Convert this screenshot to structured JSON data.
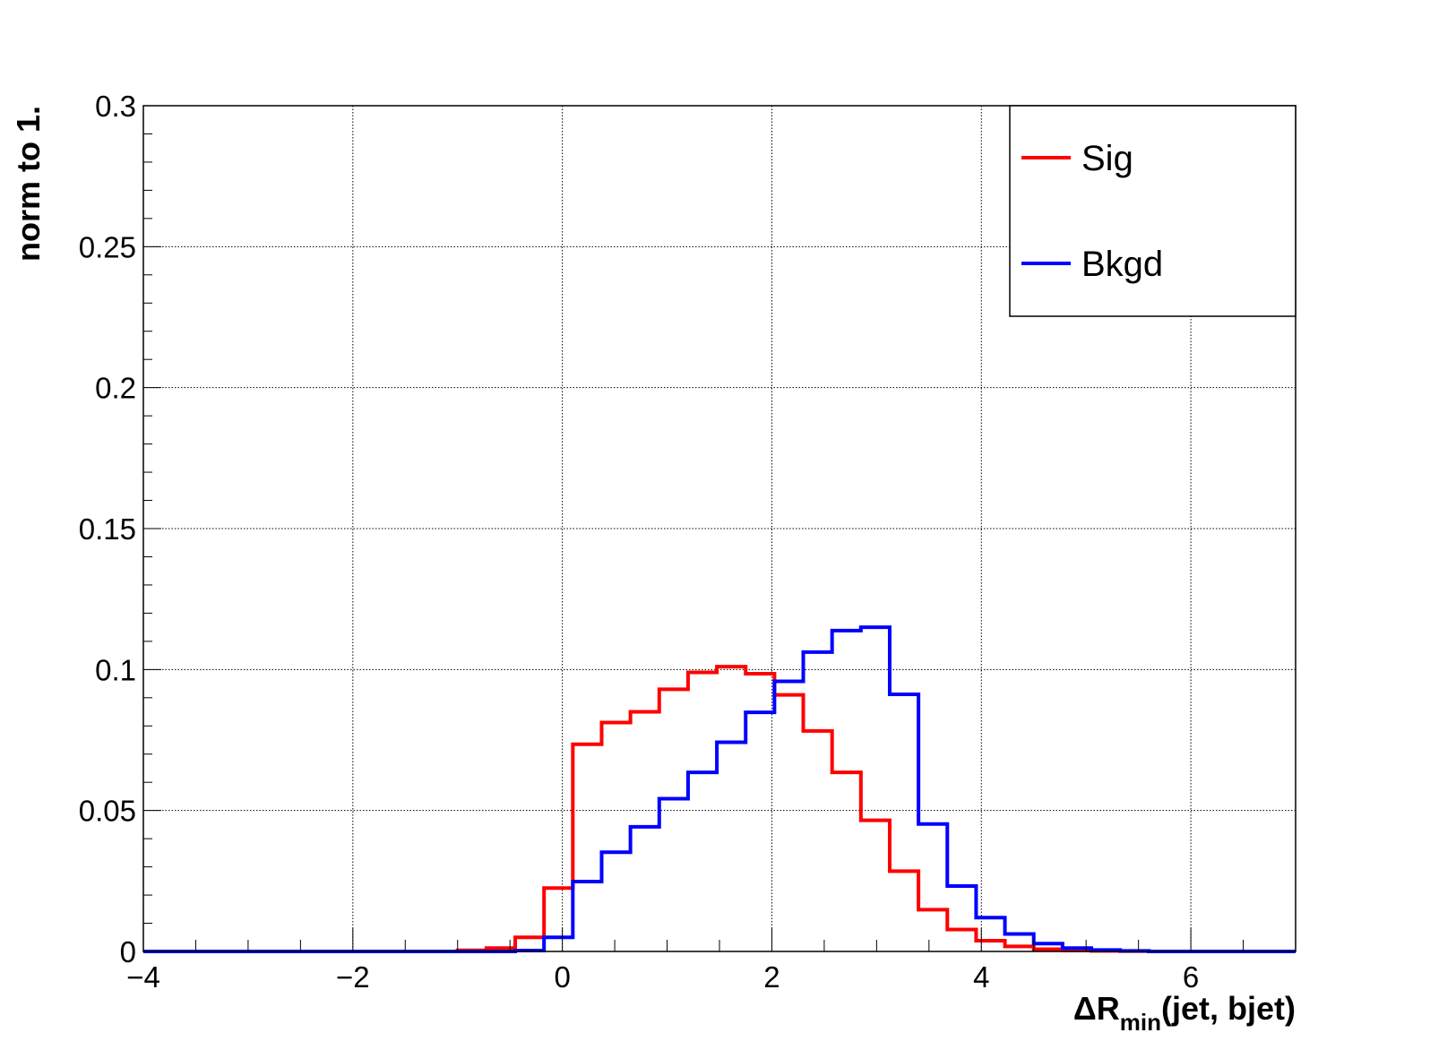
{
  "chart_data": {
    "type": "histogram",
    "xlim": [
      -4,
      7
    ],
    "ylim": [
      0,
      0.3
    ],
    "bin_width": 0.275,
    "grid": true,
    "legend_position": "top-right",
    "xlabel": {
      "main": "ΔR",
      "sub": "min",
      "rest": "(jet, bjet)"
    },
    "ylabel": "norm to 1.",
    "xticks": [
      -4,
      -2,
      0,
      2,
      4,
      6
    ],
    "xtick_labels": [
      "−4",
      "−2",
      "0",
      "2",
      "4",
      "6"
    ],
    "yticks": [
      0,
      0.05,
      0.1,
      0.15,
      0.2,
      0.25,
      0.3
    ],
    "ytick_labels": [
      "0",
      "0.05",
      "0.1",
      "0.15",
      "0.2",
      "0.25",
      "0.3"
    ],
    "series": [
      {
        "name": "Sig",
        "color": "#ff0000",
        "bin_edges": [
          -4.0,
          -1.0,
          -0.725,
          -0.45,
          -0.175,
          0.1,
          0.375,
          0.65,
          0.925,
          1.2,
          1.475,
          1.75,
          2.025,
          2.3,
          2.575,
          2.85,
          3.125,
          3.4,
          3.675,
          3.95,
          4.225,
          4.5,
          4.775,
          5.05,
          5.325,
          5.6,
          7.0
        ],
        "values": [
          0.0,
          0.0004,
          0.0012,
          0.005,
          0.0225,
          0.0735,
          0.0812,
          0.085,
          0.093,
          0.099,
          0.101,
          0.0985,
          0.091,
          0.0782,
          0.0635,
          0.0465,
          0.0285,
          0.0148,
          0.0078,
          0.0038,
          0.0018,
          0.0008,
          0.0004,
          0.0002,
          0.0001,
          0.0
        ]
      },
      {
        "name": "Bkgd",
        "color": "#0000ff",
        "bin_edges": [
          -4.0,
          -0.45,
          -0.175,
          0.1,
          0.375,
          0.65,
          0.925,
          1.2,
          1.475,
          1.75,
          2.025,
          2.3,
          2.575,
          2.85,
          3.125,
          3.4,
          3.675,
          3.95,
          4.225,
          4.5,
          4.775,
          5.05,
          5.325,
          5.6,
          7.0
        ],
        "values": [
          0.0,
          0.0003,
          0.005,
          0.0248,
          0.0352,
          0.0442,
          0.0542,
          0.0635,
          0.0742,
          0.0848,
          0.0958,
          0.1062,
          0.1138,
          0.115,
          0.0912,
          0.0452,
          0.0232,
          0.012,
          0.0062,
          0.0028,
          0.0012,
          0.0005,
          0.0002,
          0.0
        ]
      }
    ]
  }
}
